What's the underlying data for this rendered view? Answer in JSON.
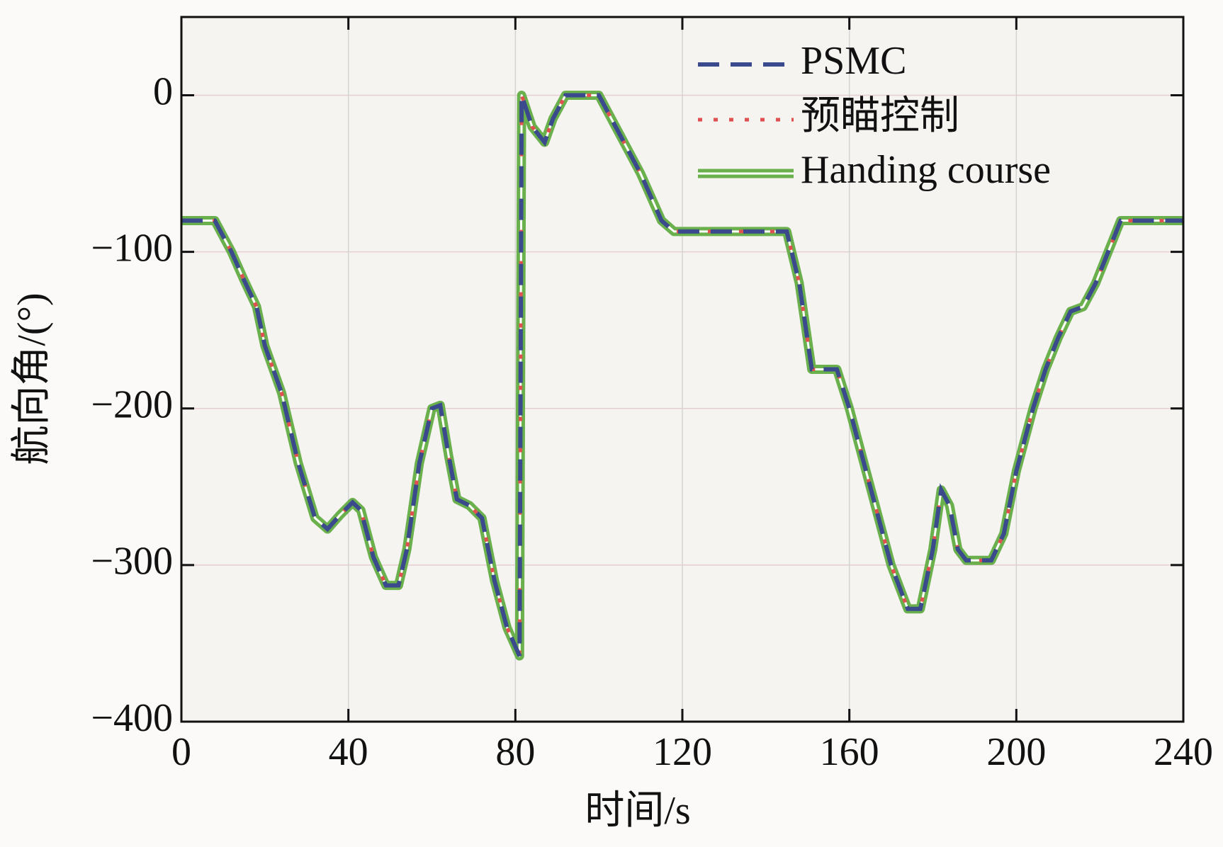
{
  "chart_data": {
    "type": "line",
    "xlabel": "时间/s",
    "ylabel": "航向角/(°)",
    "x": [
      0,
      8,
      12,
      15,
      18,
      20,
      24,
      28,
      32,
      35,
      38,
      41,
      43,
      46,
      49,
      52,
      54,
      57,
      60,
      62,
      64,
      66,
      69,
      72,
      75,
      78,
      81,
      81.5,
      84,
      87,
      89,
      92,
      95,
      100,
      105,
      110,
      115,
      118,
      130,
      145,
      148,
      151,
      157,
      160,
      165,
      170,
      174,
      177,
      180,
      182,
      184,
      186,
      188,
      194,
      197,
      200,
      204,
      207,
      210,
      213,
      216,
      219,
      222,
      225,
      240
    ],
    "series": [
      {
        "name": "PSMC",
        "color": "#3b4a8c",
        "style": "dashed",
        "values": [
          -80,
          -80,
          -100,
          -118,
          -135,
          -160,
          -190,
          -235,
          -270,
          -277,
          -268,
          -260,
          -265,
          -295,
          -313,
          -313,
          -290,
          -235,
          -200,
          -198,
          -230,
          -258,
          -262,
          -270,
          -310,
          -340,
          -358,
          0,
          -20,
          -30,
          -15,
          0,
          0,
          0,
          -25,
          -50,
          -80,
          -87,
          -87,
          -87,
          -120,
          -175,
          -175,
          -200,
          -250,
          -300,
          -328,
          -328,
          -290,
          -252,
          -262,
          -290,
          -297,
          -297,
          -280,
          -240,
          -200,
          -175,
          -155,
          -138,
          -135,
          -120,
          -100,
          -80,
          -80
        ]
      },
      {
        "name": "预瞄控制",
        "color": "#e05050",
        "style": "dotted",
        "values": [
          -80,
          -80,
          -100,
          -118,
          -135,
          -160,
          -190,
          -235,
          -270,
          -277,
          -268,
          -260,
          -265,
          -295,
          -313,
          -313,
          -290,
          -235,
          -200,
          -198,
          -230,
          -258,
          -262,
          -270,
          -310,
          -340,
          -358,
          0,
          -20,
          -30,
          -15,
          0,
          0,
          0,
          -25,
          -50,
          -80,
          -87,
          -87,
          -87,
          -120,
          -175,
          -175,
          -200,
          -250,
          -300,
          -328,
          -328,
          -290,
          -252,
          -262,
          -290,
          -297,
          -297,
          -280,
          -240,
          -200,
          -175,
          -155,
          -138,
          -135,
          -120,
          -100,
          -80,
          -80
        ]
      },
      {
        "name": "Handing course",
        "color": "#6ab04c",
        "style": "double",
        "values": [
          -80,
          -80,
          -100,
          -118,
          -135,
          -160,
          -190,
          -235,
          -270,
          -277,
          -268,
          -260,
          -265,
          -295,
          -313,
          -313,
          -290,
          -235,
          -200,
          -198,
          -230,
          -258,
          -262,
          -270,
          -310,
          -340,
          -358,
          0,
          -20,
          -30,
          -15,
          0,
          0,
          0,
          -25,
          -50,
          -80,
          -87,
          -87,
          -87,
          -120,
          -175,
          -175,
          -200,
          -250,
          -300,
          -328,
          -328,
          -290,
          -252,
          -262,
          -290,
          -297,
          -297,
          -280,
          -240,
          -200,
          -175,
          -155,
          -138,
          -135,
          -120,
          -100,
          -80,
          -80
        ]
      }
    ],
    "xlim": [
      0,
      240
    ],
    "xticks": [
      0,
      40,
      80,
      120,
      160,
      200,
      240
    ],
    "ylim": [
      -400,
      50
    ],
    "yticks": [
      {
        "value": -400,
        "label": "−400"
      },
      {
        "value": -300,
        "label": "−300"
      },
      {
        "value": -200,
        "label": "−200"
      },
      {
        "value": -100,
        "label": "−100"
      },
      0
    ],
    "grid": true,
    "legend": "upper right"
  }
}
